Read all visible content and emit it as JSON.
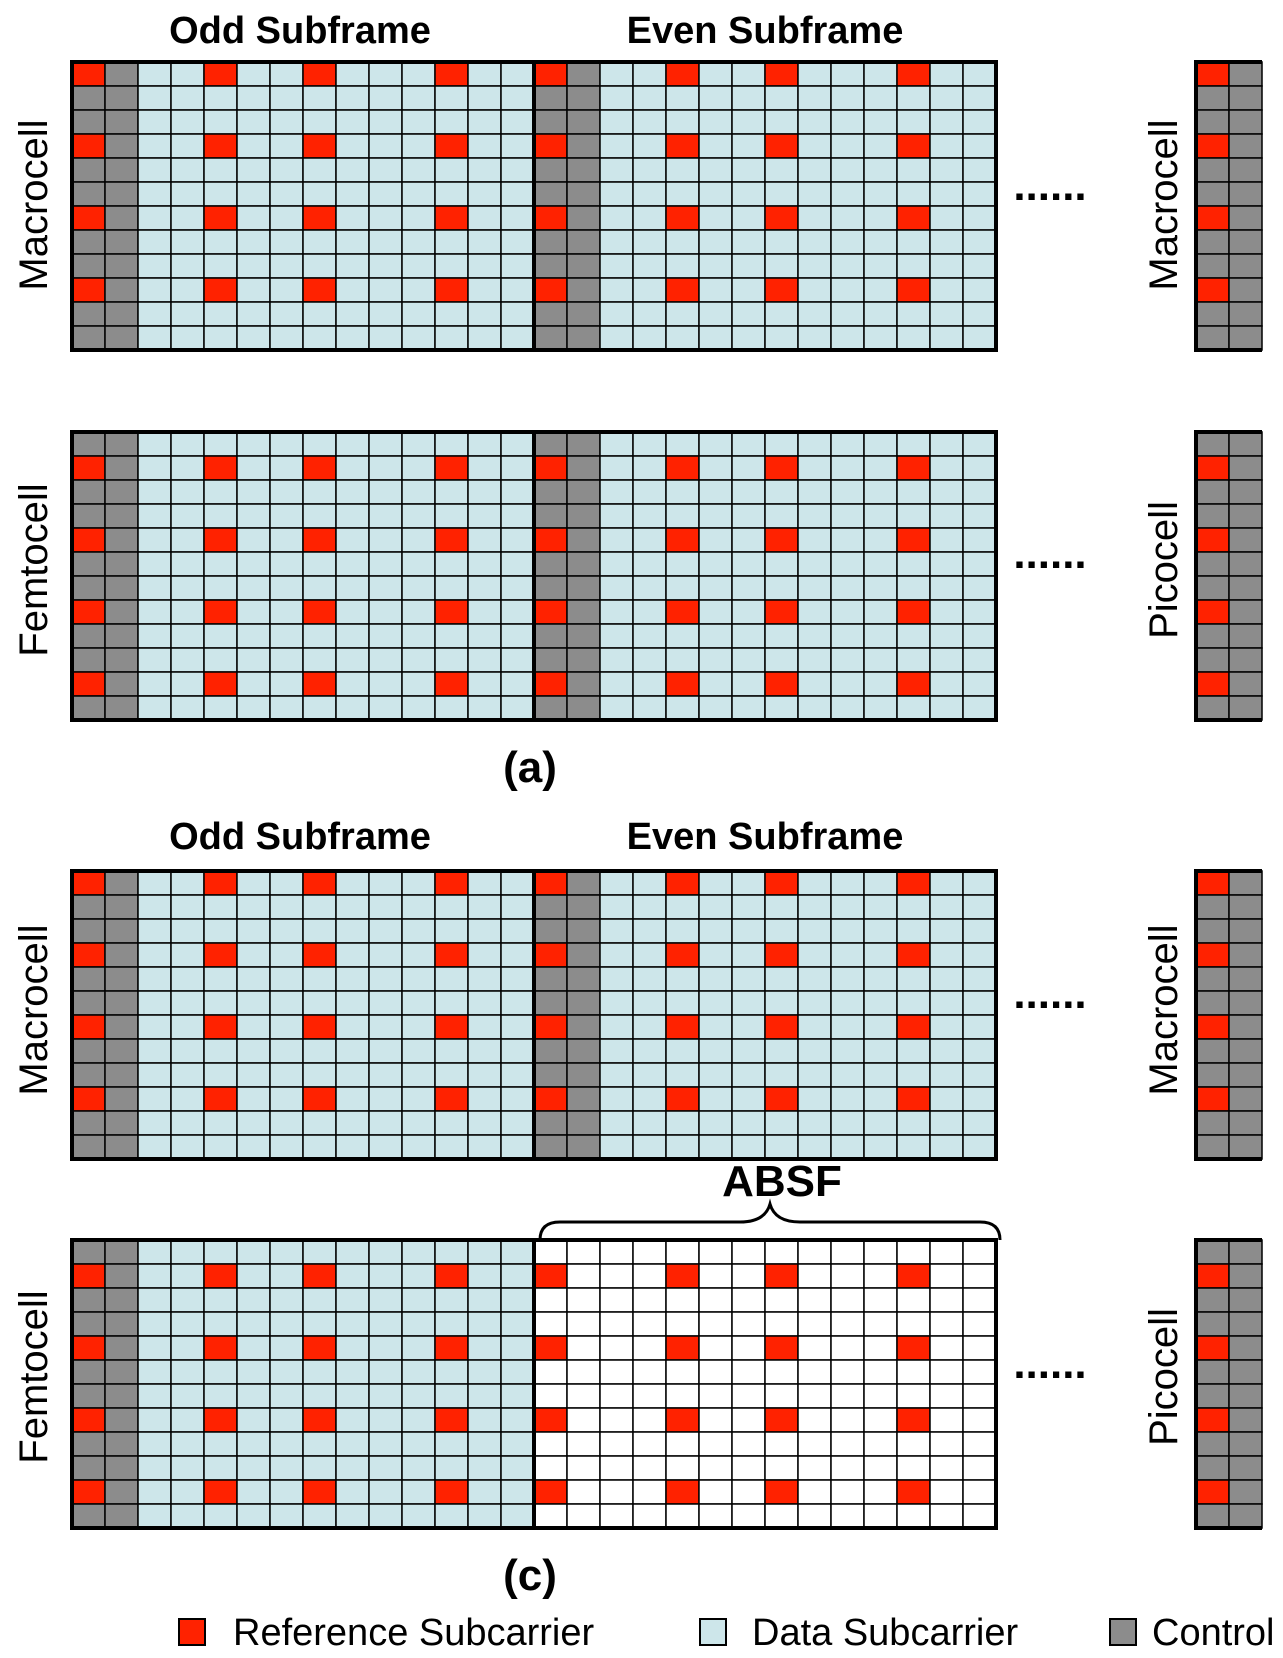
{
  "colors": {
    "reference": "#ff2200",
    "data": "#cde6ea",
    "control": "#8c8c8c",
    "blank": "#ffffff",
    "grid": "#000000"
  },
  "grid": {
    "rows": 12,
    "cols_per_subframe": 14
  },
  "continuation": "......",
  "panels": [
    {
      "id": "a",
      "caption": "(a)",
      "subframe_labels": {
        "odd": "Odd Subframe",
        "even": "Even Subframe"
      },
      "rows": [
        {
          "left_label": "Macrocell",
          "right_label": "Macrocell",
          "pattern": "macro",
          "even_blank": false
        },
        {
          "left_label": "Femtocell",
          "right_label": "Picocell",
          "pattern": "femto",
          "even_blank": false
        }
      ]
    },
    {
      "id": "c",
      "caption": "(c)",
      "subframe_labels": {
        "odd": "Odd Subframe",
        "even": "Even Subframe"
      },
      "brace_label": "ABSF",
      "rows": [
        {
          "left_label": "Macrocell",
          "right_label": "Macrocell",
          "pattern": "macro",
          "even_blank": false
        },
        {
          "left_label": "Femtocell",
          "right_label": "Picocell",
          "pattern": "femto",
          "even_blank": true
        }
      ]
    }
  ],
  "legend": [
    {
      "label": "Reference Subcarrier",
      "color": "#ff2200"
    },
    {
      "label": "Data Subcarrier",
      "color": "#cde6ea"
    },
    {
      "label": "Control",
      "color": "#8c8c8c"
    }
  ]
}
